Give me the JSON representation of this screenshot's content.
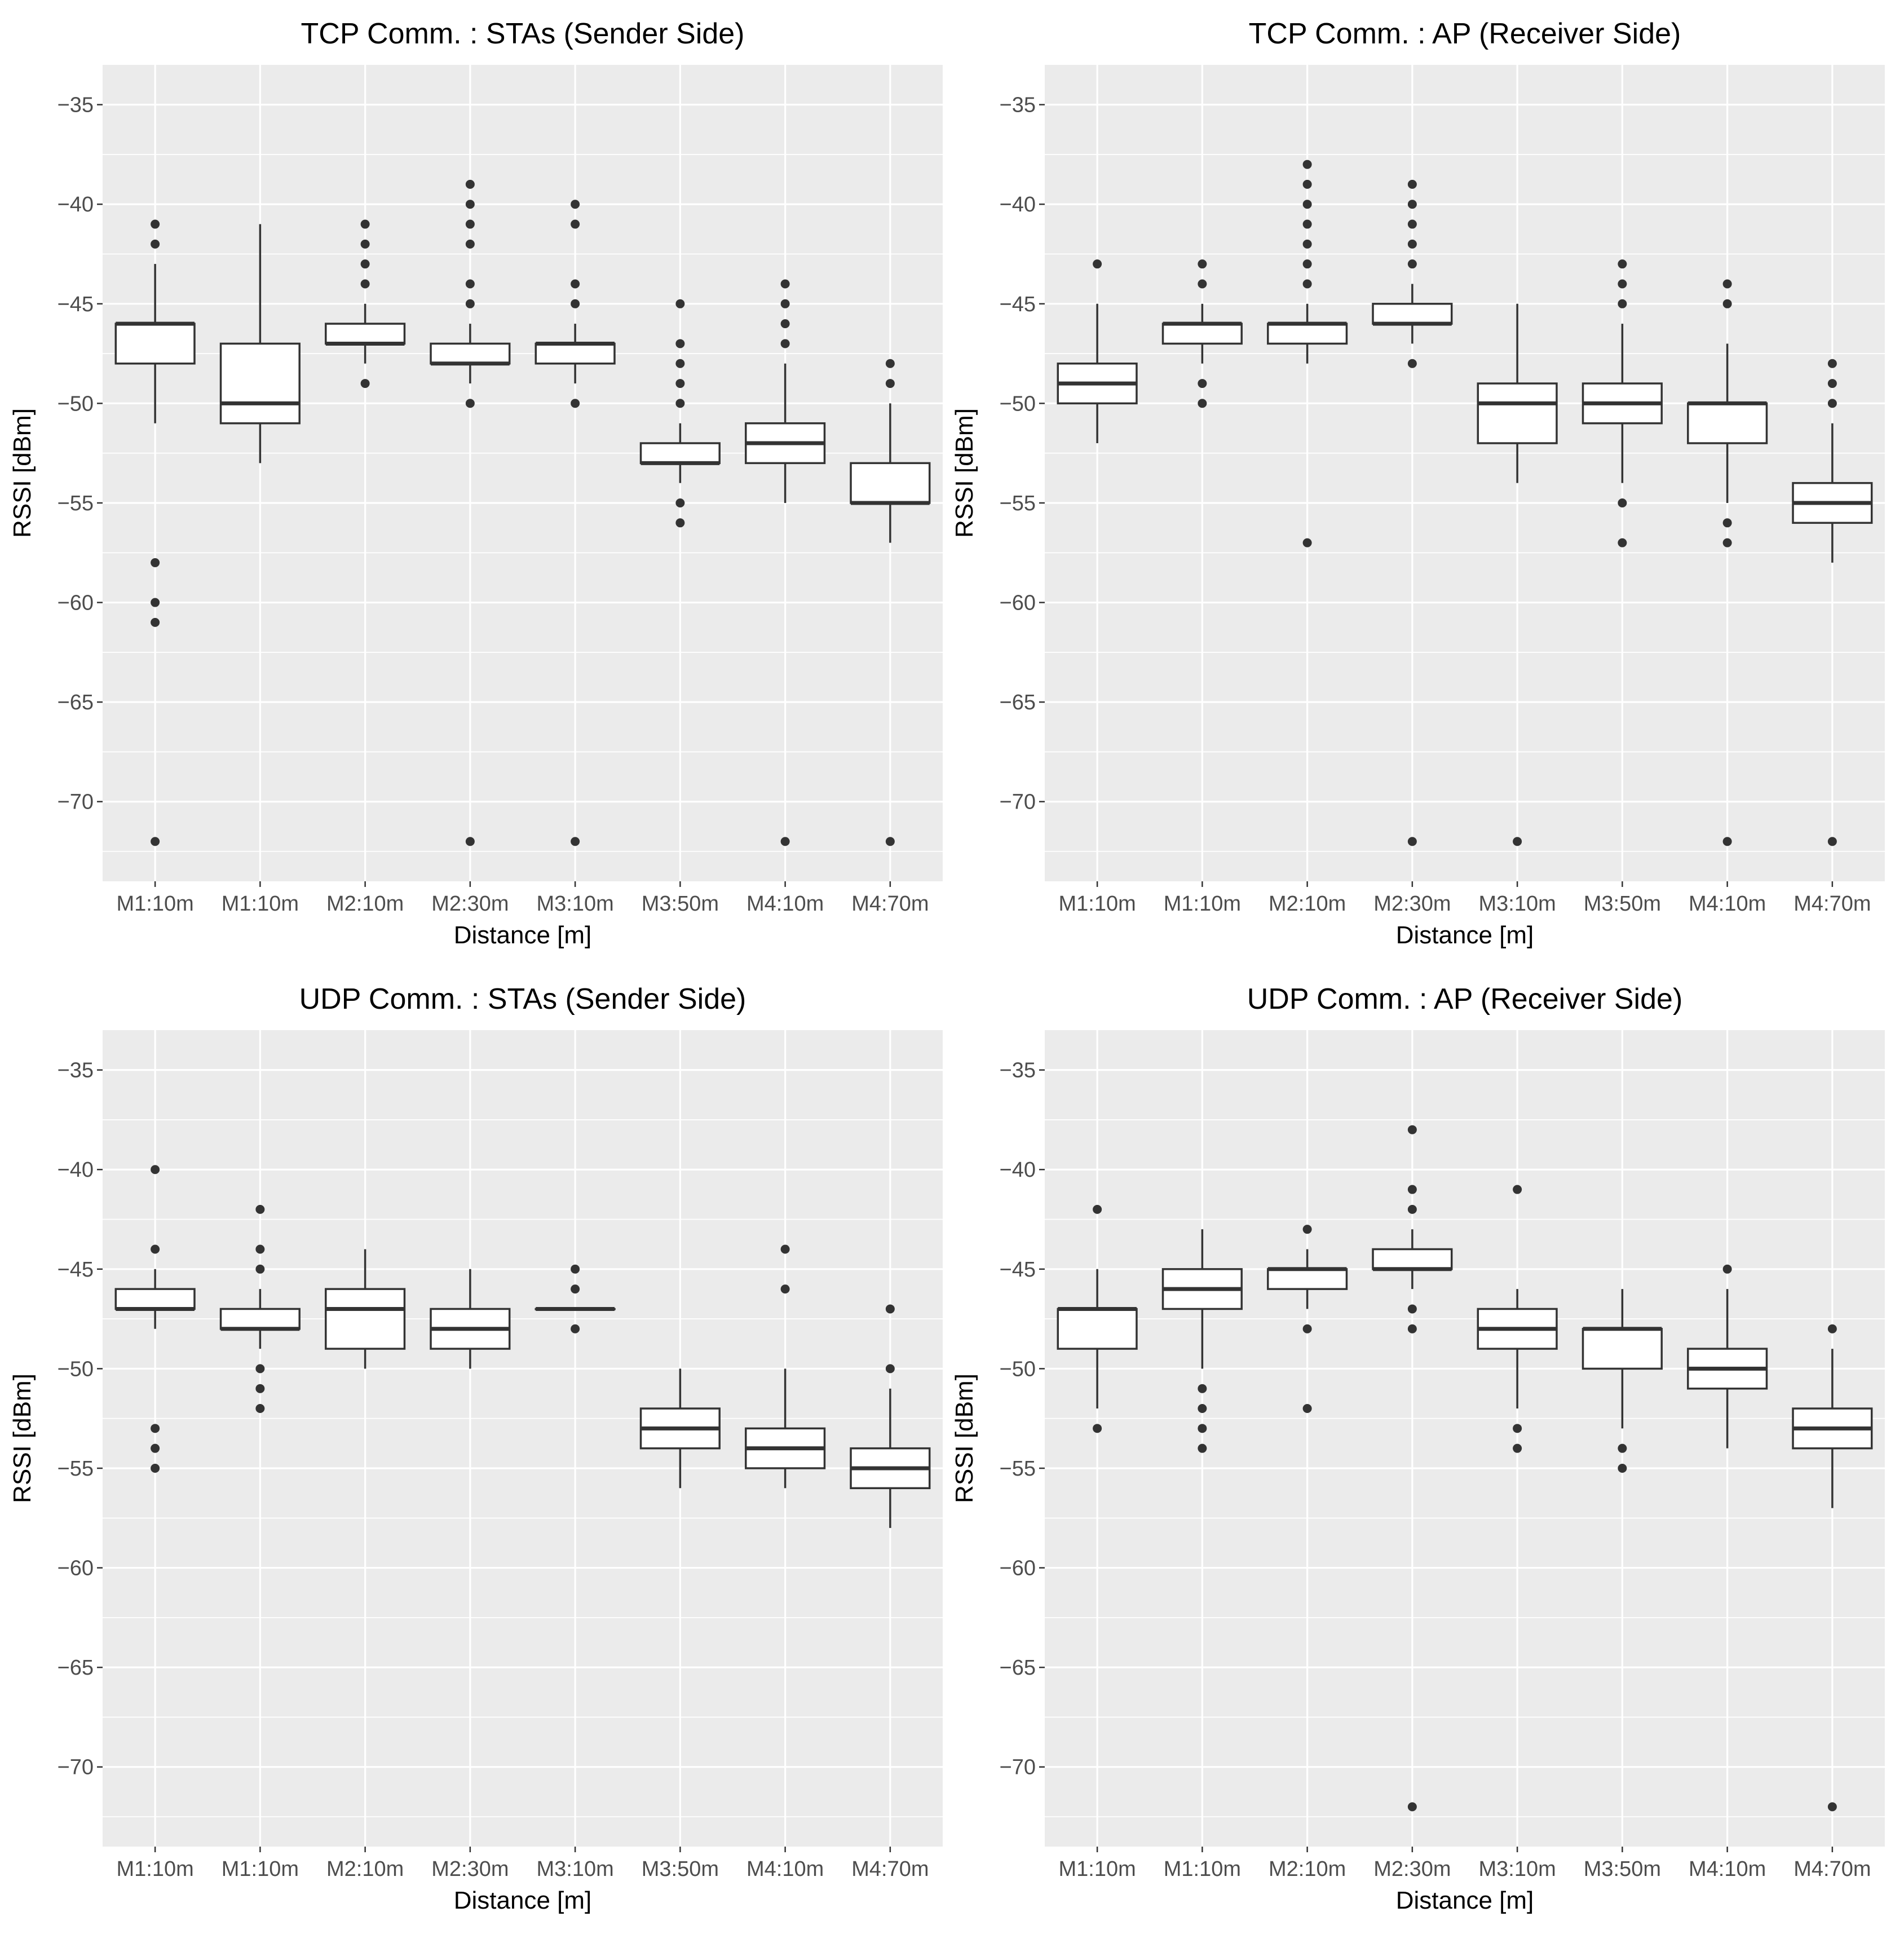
{
  "colors": {
    "panel_bg": "#ebebeb",
    "grid": "#ffffff",
    "box_fill": "#ffffff",
    "box_line": "#333333",
    "tick_text": "#4d4d4d"
  },
  "chart_data": [
    {
      "type": "boxplot",
      "title": "TCP Comm. : STAs (Sender Side)",
      "xlabel": "Distance [m]",
      "ylabel": "RSSI [dBm]",
      "ylim": [
        -74,
        -33
      ],
      "yticks": [
        -35,
        -40,
        -45,
        -50,
        -55,
        -60,
        -65,
        -70
      ],
      "ytick_labels": [
        "−35",
        "−40",
        "−45",
        "−50",
        "−55",
        "−60",
        "−65",
        "−70"
      ],
      "categories": [
        "M1:10m",
        "M1:10m",
        "M2:10m",
        "M2:30m",
        "M3:10m",
        "M3:50m",
        "M4:10m",
        "M4:70m"
      ],
      "boxes": [
        {
          "lower_whisker": -51,
          "q1": -48,
          "median": -46,
          "q3": -46,
          "upper_whisker": -43,
          "outliers": [
            -41,
            -42,
            -58,
            -60,
            -61,
            -72
          ]
        },
        {
          "lower_whisker": -53,
          "q1": -51,
          "median": -50,
          "q3": -47,
          "upper_whisker": -41,
          "outliers": []
        },
        {
          "lower_whisker": -48,
          "q1": -47,
          "median": -47,
          "q3": -46,
          "upper_whisker": -45,
          "outliers": [
            -41,
            -42,
            -43,
            -44,
            -49
          ]
        },
        {
          "lower_whisker": -49,
          "q1": -48,
          "median": -48,
          "q3": -47,
          "upper_whisker": -46,
          "outliers": [
            -39,
            -40,
            -41,
            -42,
            -44,
            -45,
            -50,
            -72
          ]
        },
        {
          "lower_whisker": -49,
          "q1": -48,
          "median": -47,
          "q3": -47,
          "upper_whisker": -46,
          "outliers": [
            -40,
            -41,
            -44,
            -45,
            -50,
            -72
          ]
        },
        {
          "lower_whisker": -54,
          "q1": -53,
          "median": -53,
          "q3": -52,
          "upper_whisker": -51,
          "outliers": [
            -45,
            -47,
            -48,
            -49,
            -50,
            -55,
            -56
          ]
        },
        {
          "lower_whisker": -55,
          "q1": -53,
          "median": -52,
          "q3": -51,
          "upper_whisker": -48,
          "outliers": [
            -44,
            -45,
            -46,
            -47,
            -72
          ]
        },
        {
          "lower_whisker": -57,
          "q1": -55,
          "median": -55,
          "q3": -53,
          "upper_whisker": -50,
          "outliers": [
            -48,
            -49,
            -72
          ]
        }
      ]
    },
    {
      "type": "boxplot",
      "title": "TCP Comm. : AP (Receiver Side)",
      "xlabel": "Distance [m]",
      "ylabel": "RSSI [dBm]",
      "ylim": [
        -74,
        -33
      ],
      "yticks": [
        -35,
        -40,
        -45,
        -50,
        -55,
        -60,
        -65,
        -70
      ],
      "ytick_labels": [
        "−35",
        "−40",
        "−45",
        "−50",
        "−55",
        "−60",
        "−65",
        "−70"
      ],
      "categories": [
        "M1:10m",
        "M1:10m",
        "M2:10m",
        "M2:30m",
        "M3:10m",
        "M3:50m",
        "M4:10m",
        "M4:70m"
      ],
      "boxes": [
        {
          "lower_whisker": -52,
          "q1": -50,
          "median": -49,
          "q3": -48,
          "upper_whisker": -45,
          "outliers": [
            -43
          ]
        },
        {
          "lower_whisker": -48,
          "q1": -47,
          "median": -46,
          "q3": -46,
          "upper_whisker": -45,
          "outliers": [
            -43,
            -44,
            -49,
            -50
          ]
        },
        {
          "lower_whisker": -48,
          "q1": -47,
          "median": -46,
          "q3": -46,
          "upper_whisker": -45,
          "outliers": [
            -38,
            -39,
            -40,
            -41,
            -42,
            -43,
            -44,
            -57
          ]
        },
        {
          "lower_whisker": -47,
          "q1": -46,
          "median": -46,
          "q3": -45,
          "upper_whisker": -44,
          "outliers": [
            -39,
            -40,
            -41,
            -42,
            -43,
            -48,
            -72
          ]
        },
        {
          "lower_whisker": -54,
          "q1": -52,
          "median": -50,
          "q3": -49,
          "upper_whisker": -45,
          "outliers": [
            -72
          ]
        },
        {
          "lower_whisker": -54,
          "q1": -51,
          "median": -50,
          "q3": -49,
          "upper_whisker": -46,
          "outliers": [
            -43,
            -44,
            -45,
            -55,
            -57
          ]
        },
        {
          "lower_whisker": -55,
          "q1": -52,
          "median": -50,
          "q3": -50,
          "upper_whisker": -47,
          "outliers": [
            -44,
            -45,
            -56,
            -57,
            -72
          ]
        },
        {
          "lower_whisker": -58,
          "q1": -56,
          "median": -55,
          "q3": -54,
          "upper_whisker": -51,
          "outliers": [
            -48,
            -49,
            -50,
            -72
          ]
        }
      ]
    },
    {
      "type": "boxplot",
      "title": "UDP Comm. : STAs (Sender Side)",
      "xlabel": "Distance [m]",
      "ylabel": "RSSI [dBm]",
      "ylim": [
        -74,
        -33
      ],
      "yticks": [
        -35,
        -40,
        -45,
        -50,
        -55,
        -60,
        -65,
        -70
      ],
      "ytick_labels": [
        "−35",
        "−40",
        "−45",
        "−50",
        "−55",
        "−60",
        "−65",
        "−70"
      ],
      "categories": [
        "M1:10m",
        "M1:10m",
        "M2:10m",
        "M2:30m",
        "M3:10m",
        "M3:50m",
        "M4:10m",
        "M4:70m"
      ],
      "boxes": [
        {
          "lower_whisker": -48,
          "q1": -47,
          "median": -47,
          "q3": -46,
          "upper_whisker": -45,
          "outliers": [
            -40,
            -44,
            -53,
            -54,
            -55
          ]
        },
        {
          "lower_whisker": -49,
          "q1": -48,
          "median": -48,
          "q3": -47,
          "upper_whisker": -46,
          "outliers": [
            -42,
            -44,
            -45,
            -50,
            -51,
            -52
          ]
        },
        {
          "lower_whisker": -50,
          "q1": -49,
          "median": -47,
          "q3": -46,
          "upper_whisker": -44,
          "outliers": []
        },
        {
          "lower_whisker": -50,
          "q1": -49,
          "median": -48,
          "q3": -47,
          "upper_whisker": -45,
          "outliers": []
        },
        {
          "lower_whisker": -47,
          "q1": -47,
          "median": -47,
          "q3": -47,
          "upper_whisker": -47,
          "outliers": [
            -45,
            -46,
            -48
          ]
        },
        {
          "lower_whisker": -56,
          "q1": -54,
          "median": -53,
          "q3": -52,
          "upper_whisker": -50,
          "outliers": []
        },
        {
          "lower_whisker": -56,
          "q1": -55,
          "median": -54,
          "q3": -53,
          "upper_whisker": -50,
          "outliers": [
            -44,
            -46
          ]
        },
        {
          "lower_whisker": -58,
          "q1": -56,
          "median": -55,
          "q3": -54,
          "upper_whisker": -51,
          "outliers": [
            -47,
            -50
          ]
        }
      ]
    },
    {
      "type": "boxplot",
      "title": "UDP Comm. : AP (Receiver Side)",
      "xlabel": "Distance [m]",
      "ylabel": "RSSI [dBm]",
      "ylim": [
        -74,
        -33
      ],
      "yticks": [
        -35,
        -40,
        -45,
        -50,
        -55,
        -60,
        -65,
        -70
      ],
      "ytick_labels": [
        "−35",
        "−40",
        "−45",
        "−50",
        "−55",
        "−60",
        "−65",
        "−70"
      ],
      "categories": [
        "M1:10m",
        "M1:10m",
        "M2:10m",
        "M2:30m",
        "M3:10m",
        "M3:50m",
        "M4:10m",
        "M4:70m"
      ],
      "boxes": [
        {
          "lower_whisker": -52,
          "q1": -49,
          "median": -47,
          "q3": -47,
          "upper_whisker": -45,
          "outliers": [
            -42,
            -53
          ]
        },
        {
          "lower_whisker": -50,
          "q1": -47,
          "median": -46,
          "q3": -45,
          "upper_whisker": -43,
          "outliers": [
            -51,
            -52,
            -53,
            -54
          ]
        },
        {
          "lower_whisker": -47,
          "q1": -46,
          "median": -45,
          "q3": -45,
          "upper_whisker": -44,
          "outliers": [
            -43,
            -48,
            -52
          ]
        },
        {
          "lower_whisker": -46,
          "q1": -45,
          "median": -45,
          "q3": -44,
          "upper_whisker": -43,
          "outliers": [
            -38,
            -41,
            -42,
            -47,
            -48,
            -72
          ]
        },
        {
          "lower_whisker": -52,
          "q1": -49,
          "median": -48,
          "q3": -47,
          "upper_whisker": -46,
          "outliers": [
            -41,
            -53,
            -54
          ]
        },
        {
          "lower_whisker": -53,
          "q1": -50,
          "median": -48,
          "q3": -48,
          "upper_whisker": -46,
          "outliers": [
            -54,
            -55
          ]
        },
        {
          "lower_whisker": -54,
          "q1": -51,
          "median": -50,
          "q3": -49,
          "upper_whisker": -46,
          "outliers": [
            -45
          ]
        },
        {
          "lower_whisker": -57,
          "q1": -54,
          "median": -53,
          "q3": -52,
          "upper_whisker": -49,
          "outliers": [
            -48,
            -72
          ]
        }
      ]
    }
  ]
}
